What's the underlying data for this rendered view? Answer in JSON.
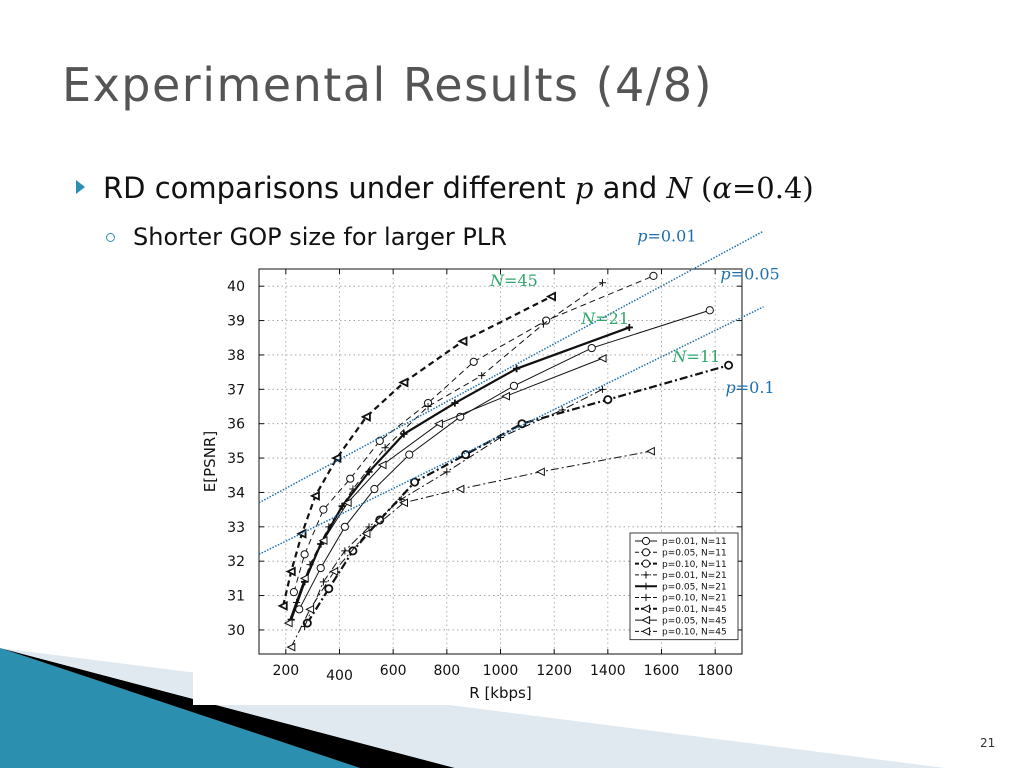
{
  "slide": {
    "title": "Experimental Results (4/8)",
    "bullet1": {
      "text": "RD comparisons under different ",
      "p": "p",
      "and": " and ",
      "n": "N",
      "alpha_open": " (",
      "alpha": "α",
      "alpha_val": "=0.4",
      "alpha_close": ")"
    },
    "bullet2": "Shorter GOP size for larger PLR",
    "page_number": "21",
    "bullet_color": "#2b8fb0",
    "footer_band_colors": [
      "#2b8fb0",
      "#000000",
      "#dfe9ef"
    ]
  },
  "chart_data": {
    "type": "line",
    "xlabel": "R [kbps]",
    "ylabel": "E[PSNR]",
    "xlim": [
      100,
      1900
    ],
    "ylim": [
      29.3,
      40.5
    ],
    "xticks": [
      200,
      400,
      600,
      800,
      1000,
      1200,
      1400,
      1600,
      1800
    ],
    "yticks": [
      30,
      31,
      32,
      33,
      34,
      35,
      36,
      37,
      38,
      39,
      40
    ],
    "grid": true,
    "legend_position": "bottom-right",
    "series": [
      {
        "name": "p=0.01, N=11",
        "marker": "circle",
        "dash": "solid",
        "weight": "thin",
        "x": [
          250,
          330,
          420,
          530,
          660,
          850,
          1050,
          1340,
          1780
        ],
        "y": [
          30.6,
          31.8,
          33.0,
          34.1,
          35.1,
          36.2,
          37.1,
          38.2,
          39.3
        ]
      },
      {
        "name": "p=0.05, N=11",
        "marker": "circle",
        "dash": "dash",
        "weight": "thin",
        "x": [
          230,
          270,
          340,
          440,
          550,
          730,
          900,
          1170,
          1570
        ],
        "y": [
          31.1,
          32.2,
          33.5,
          34.4,
          35.5,
          36.6,
          37.8,
          39.0,
          40.3
        ]
      },
      {
        "name": "p=0.10, N=11",
        "marker": "circle",
        "dash": "dashdot",
        "weight": "bold",
        "x": [
          280,
          360,
          450,
          550,
          680,
          870,
          1080,
          1400,
          1850
        ],
        "y": [
          30.2,
          31.2,
          32.3,
          33.2,
          34.3,
          35.1,
          36.0,
          36.7,
          37.7
        ]
      },
      {
        "name": "p=0.01, N=21",
        "marker": "plus",
        "dash": "dashdot",
        "weight": "thin",
        "x": [
          270,
          340,
          420,
          510,
          630,
          800,
          1000,
          1230,
          1380
        ],
        "y": [
          30.1,
          31.4,
          32.3,
          33.0,
          33.8,
          34.6,
          35.6,
          36.4,
          37.0
        ]
      },
      {
        "name": "p=0.05, N=21",
        "marker": "plus",
        "dash": "solid",
        "weight": "bold",
        "x": [
          220,
          270,
          330,
          410,
          510,
          640,
          830,
          1060,
          1480
        ],
        "y": [
          30.3,
          31.4,
          32.5,
          33.6,
          34.6,
          35.7,
          36.6,
          37.6,
          38.8
        ]
      },
      {
        "name": "p=0.10, N=21",
        "marker": "plus",
        "dash": "dash",
        "weight": "thin",
        "x": [
          240,
          290,
          360,
          450,
          570,
          730,
          930,
          1160,
          1380
        ],
        "y": [
          30.8,
          31.9,
          33.0,
          34.1,
          35.3,
          36.5,
          37.4,
          38.9,
          40.1
        ]
      },
      {
        "name": "p=0.01, N=45",
        "marker": "triangle-left",
        "dash": "dash",
        "weight": "bold",
        "x": [
          190,
          220,
          260,
          310,
          390,
          500,
          640,
          860,
          1190
        ],
        "y": [
          30.7,
          31.7,
          32.8,
          33.9,
          35.0,
          36.2,
          37.2,
          38.4,
          39.7
        ]
      },
      {
        "name": "p=0.05, N=45",
        "marker": "triangle-left",
        "dash": "solid",
        "weight": "thin",
        "x": [
          210,
          270,
          340,
          430,
          560,
          770,
          1020,
          1380
        ],
        "y": [
          30.2,
          31.5,
          32.6,
          33.7,
          34.8,
          36.0,
          36.8,
          37.9
        ]
      },
      {
        "name": "p=0.10, N=45",
        "marker": "triangle-left",
        "dash": "dashdot",
        "weight": "thin",
        "x": [
          220,
          290,
          380,
          500,
          640,
          850,
          1150,
          1560
        ],
        "y": [
          29.5,
          30.6,
          31.7,
          32.8,
          33.7,
          34.1,
          34.6,
          35.2
        ]
      }
    ],
    "annotations": [
      {
        "text_prefix": "p",
        "text_suffix": "=0.01",
        "color": "#1e6fae",
        "x": 1620,
        "y": 41.3
      },
      {
        "text_prefix": "p",
        "text_suffix": "=0.05",
        "color": "#1e6fae",
        "x": 1930,
        "y": 40.2
      },
      {
        "text_prefix": "p",
        "text_suffix": "=0.1",
        "color": "#1e6fae",
        "x": 1930,
        "y": 36.9
      },
      {
        "text_prefix": "N",
        "text_suffix": "=45",
        "color": "#2ea86b",
        "x": 1050,
        "y": 40.0
      },
      {
        "text_prefix": "N",
        "text_suffix": "=21",
        "color": "#2ea86b",
        "x": 1390,
        "y": 38.9
      },
      {
        "text_prefix": "N",
        "text_suffix": "=11",
        "color": "#2ea86b",
        "x": 1730,
        "y": 37.8
      }
    ],
    "separator_lines": [
      {
        "x": [
          100,
          1980
        ],
        "y": [
          33.7,
          41.6
        ],
        "color": "#1e6fae"
      },
      {
        "x": [
          100,
          1980
        ],
        "y": [
          32.2,
          39.4
        ],
        "color": "#1e6fae"
      }
    ]
  }
}
